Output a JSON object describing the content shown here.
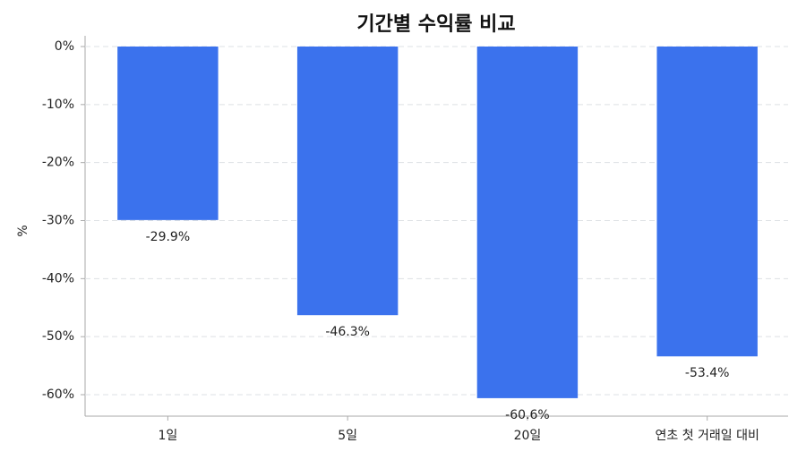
{
  "chart_data": {
    "type": "bar",
    "title": "기간별 수익률 비교",
    "y_label": "%",
    "categories": [
      "1일",
      "5일",
      "20일",
      "연초 첫 거래일 대비"
    ],
    "values": [
      -29.9,
      -46.3,
      -60.6,
      -53.4
    ],
    "value_labels": [
      "-29.9%",
      "-46.3%",
      "-60.6%",
      "-53.4%"
    ],
    "color": "#3b72ed",
    "ylim": [
      -63.7,
      0
    ],
    "yticks": [
      {
        "value": 0,
        "label": "0%"
      },
      {
        "value": -10,
        "label": "-10%"
      },
      {
        "value": -20,
        "label": "-20%"
      },
      {
        "value": -30,
        "label": "-30%"
      },
      {
        "value": -40,
        "label": "-40%"
      },
      {
        "value": -50,
        "label": "-50%"
      },
      {
        "value": -60,
        "label": "-60%"
      }
    ],
    "grid": true
  }
}
